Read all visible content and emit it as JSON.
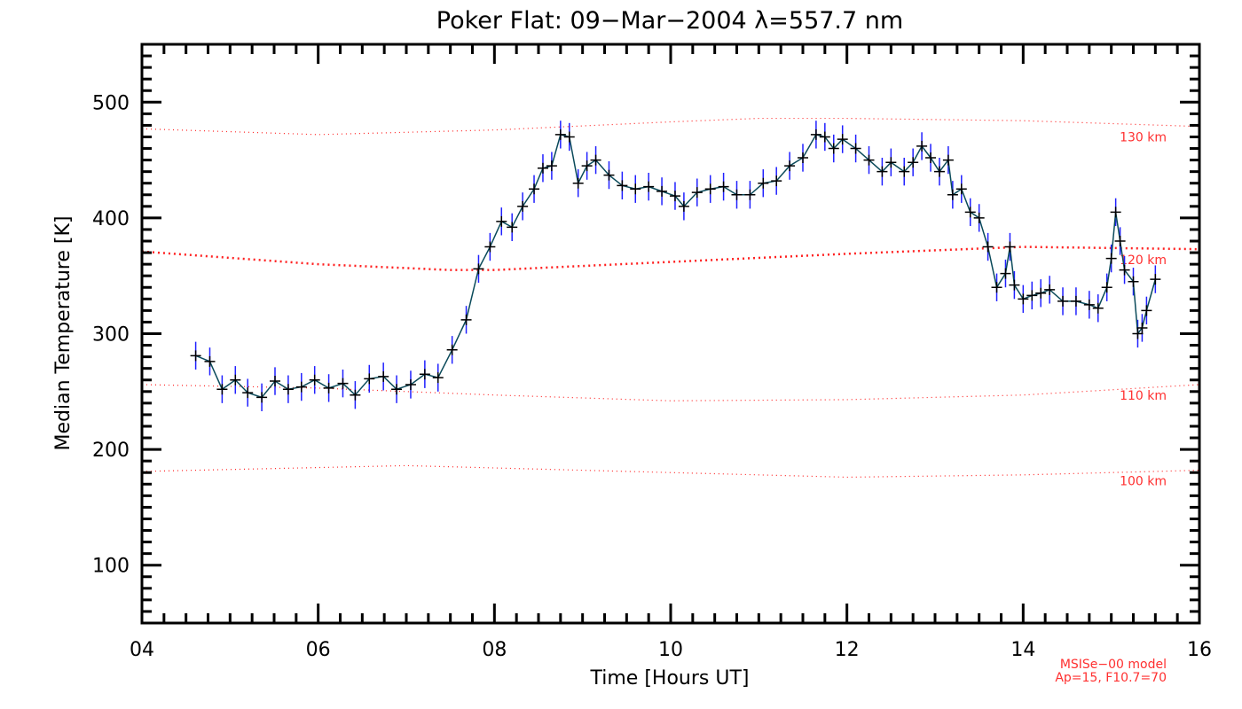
{
  "chart_data": {
    "type": "line",
    "title": "Poker Flat: 09−Mar−2004 λ=557.7 nm",
    "xlabel": "Time [Hours UT]",
    "ylabel": "Median Temperature [K]",
    "xlim": [
      4,
      16
    ],
    "ylim": [
      50,
      550
    ],
    "x_ticks": [
      4,
      6,
      8,
      10,
      12,
      14,
      16
    ],
    "x_tick_labels": [
      "04",
      "06",
      "08",
      "10",
      "12",
      "14",
      "16"
    ],
    "y_ticks": [
      100,
      200,
      300,
      400,
      500
    ],
    "y_tick_labels": [
      "100",
      "200",
      "300",
      "400",
      "500"
    ],
    "grid": false,
    "colors": {
      "data": "#000000",
      "line": "#0a4a5a",
      "errorbar": "#2020ff",
      "model": "#ff2020"
    },
    "series": [
      {
        "name": "Median temperature",
        "error": 12,
        "x": [
          4.61,
          4.77,
          4.91,
          5.06,
          5.2,
          5.36,
          5.51,
          5.66,
          5.81,
          5.96,
          6.12,
          6.28,
          6.42,
          6.58,
          6.74,
          6.89,
          7.05,
          7.21,
          7.36,
          7.52,
          7.68,
          7.82,
          7.95,
          8.08,
          8.2,
          8.32,
          8.45,
          8.55,
          8.65,
          8.75,
          8.85,
          8.95,
          9.05,
          9.15,
          9.3,
          9.45,
          9.6,
          9.75,
          9.9,
          10.05,
          10.15,
          10.3,
          10.45,
          10.6,
          10.75,
          10.9,
          11.05,
          11.2,
          11.35,
          11.5,
          11.65,
          11.75,
          11.85,
          11.95,
          12.1,
          12.25,
          12.4,
          12.5,
          12.65,
          12.75,
          12.85,
          12.95,
          13.05,
          13.15,
          13.2,
          13.3,
          13.4,
          13.5,
          13.6,
          13.7,
          13.8,
          13.85,
          13.9,
          14.0,
          14.1,
          14.2,
          14.3,
          14.45,
          14.6,
          14.75,
          14.85,
          14.95,
          15.0,
          15.05,
          15.1,
          15.15,
          15.25,
          15.3,
          15.35,
          15.4,
          15.5
        ],
        "y": [
          281,
          276,
          252,
          260,
          249,
          245,
          259,
          252,
          254,
          260,
          253,
          257,
          247,
          261,
          263,
          252,
          256,
          265,
          262,
          286,
          312,
          356,
          375,
          397,
          392,
          410,
          425,
          443,
          445,
          472,
          470,
          430,
          445,
          450,
          437,
          428,
          425,
          427,
          423,
          419,
          410,
          422,
          425,
          427,
          420,
          420,
          430,
          432,
          445,
          452,
          472,
          470,
          460,
          468,
          460,
          450,
          440,
          448,
          440,
          448,
          462,
          452,
          440,
          450,
          420,
          425,
          405,
          400,
          375,
          340,
          352,
          375,
          342,
          330,
          333,
          335,
          338,
          328,
          328,
          325,
          322,
          340,
          365,
          405,
          380,
          355,
          345,
          300,
          305,
          320,
          347
        ]
      }
    ],
    "model_curves": [
      {
        "label": "130 km",
        "x": [
          4,
          6,
          8,
          10,
          11,
          12,
          14,
          16
        ],
        "y": [
          477,
          472,
          476,
          483,
          486,
          486,
          484,
          479
        ]
      },
      {
        "label": "120 km",
        "x": [
          4,
          6,
          7.5,
          8,
          10,
          12,
          14,
          16
        ],
        "y": [
          371,
          360,
          355,
          355,
          362,
          369,
          375,
          373
        ]
      },
      {
        "label": "110 km",
        "x": [
          4,
          6,
          8,
          10,
          12,
          14,
          16
        ],
        "y": [
          256,
          253,
          247,
          242,
          243,
          247,
          256
        ]
      },
      {
        "label": "100 km",
        "x": [
          4,
          7,
          10,
          12,
          14,
          16
        ],
        "y": [
          181,
          186,
          180,
          176,
          178,
          182
        ]
      }
    ],
    "annotations": [
      "MSISe−00 model",
      "Ap=15, F10.7=70"
    ]
  }
}
